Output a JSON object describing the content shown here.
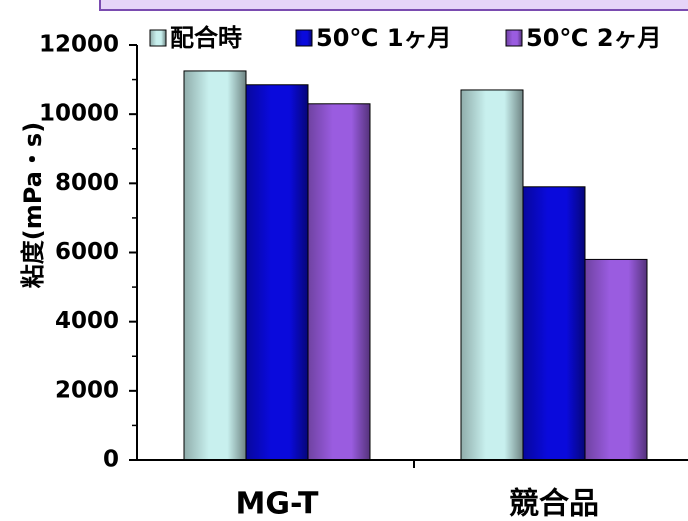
{
  "colors": {
    "series_0": "#c8f0ee",
    "series_1": "#0a0adc",
    "series_2": "#9a5ce0",
    "top_band": "#e6d4f8",
    "top_band_border": "#7a4bb0"
  },
  "chart_data": {
    "type": "bar",
    "categories": [
      "MG-T",
      "競合品"
    ],
    "series": [
      {
        "name": "配合時",
        "values": [
          11250,
          10700
        ]
      },
      {
        "name": "50℃ 1ヶ月",
        "values": [
          10850,
          7900
        ]
      },
      {
        "name": "50℃ 2ヶ月",
        "values": [
          10300,
          5800
        ]
      }
    ],
    "title": "",
    "xlabel": "",
    "ylabel": "粘度(mPa・s)",
    "ylim": [
      0,
      12000
    ],
    "yticks": [
      0,
      2000,
      4000,
      6000,
      8000,
      10000,
      12000
    ],
    "ytick_labels": [
      "0",
      "2000",
      "4000",
      "6000",
      "8000",
      "10000",
      "12000"
    ],
    "grid": false,
    "legend": "top"
  }
}
